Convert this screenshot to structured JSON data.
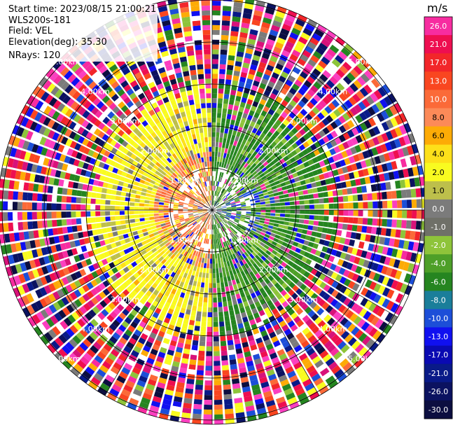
{
  "info": {
    "start_time": "Start time: 2023/08/15 21:00:21",
    "station": "WLS200s-181",
    "field": "Field: VEL",
    "elevation": "Elevation(deg): 35.30",
    "nrays": "NRays: 120"
  },
  "colorbar": {
    "unit": "m/s",
    "bins": [
      {
        "label": "26.0",
        "color": "#f72ca0"
      },
      {
        "label": "21.0",
        "color": "#ee0e50"
      },
      {
        "label": "17.0",
        "color": "#f2262a"
      },
      {
        "label": "13.0",
        "color": "#f94620"
      },
      {
        "label": "10.0",
        "color": "#fb6a38"
      },
      {
        "label": "8.0",
        "color": "#fc8a58"
      },
      {
        "label": "6.0",
        "color": "#fdab06"
      },
      {
        "label": "4.0",
        "color": "#fde01a"
      },
      {
        "label": "2.0",
        "color": "#f9fb20"
      },
      {
        "label": "1.0",
        "color": "#bdbf4b"
      },
      {
        "label": "0.0",
        "color": "#7b7b7b"
      },
      {
        "label": "-1.0",
        "color": "#6f7068"
      },
      {
        "label": "-2.0",
        "color": "#8ec43a"
      },
      {
        "label": "-4.0",
        "color": "#4d9f28"
      },
      {
        "label": "-6.0",
        "color": "#258520"
      },
      {
        "label": "-8.0",
        "color": "#1a7e9a"
      },
      {
        "label": "-10.0",
        "color": "#1c4ed8"
      },
      {
        "label": "-13.0",
        "color": "#1010f0"
      },
      {
        "label": "-17.0",
        "color": "#0a0ab2"
      },
      {
        "label": "-21.0",
        "color": "#091a88"
      },
      {
        "label": "-26.0",
        "color": "#0b1260"
      },
      {
        "label": "-30.0",
        "color": "#0c0e40"
      }
    ]
  },
  "chart_data": {
    "type": "heatmap",
    "subtype": "ppi-polar",
    "range_rings_km": [
      1,
      2,
      3,
      4,
      5
    ],
    "ring_labels": [
      "1.00km",
      "2.00km",
      "3.00km",
      "4.00km",
      "5.00km"
    ],
    "max_range_km": 5.1,
    "n_rays": 120,
    "spoke_angles_deg": [
      0,
      30,
      60,
      90,
      120,
      150,
      180,
      210,
      240,
      270,
      300,
      330
    ],
    "sectors_near_range": [
      {
        "azimuth_deg": [
          180,
          360
        ],
        "value": 1.8,
        "description": "yellow, approaching side"
      },
      {
        "azimuth_deg": [
          0,
          180
        ],
        "value": -5,
        "description": "green, receding side"
      }
    ],
    "clim": [
      -30,
      30
    ]
  }
}
